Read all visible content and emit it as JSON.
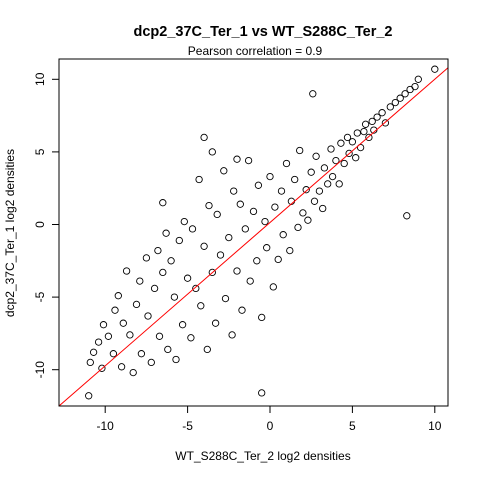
{
  "chart_data": {
    "type": "scatter",
    "title": "dcp2_37C_Ter_1 vs WT_S288C_Ter_2",
    "subtitle": "Pearson correlation =  0.9",
    "xlabel": "WT_S288C_Ter_2 log2 densities",
    "ylabel": "dcp2_37C_Ter_1 log2 densities",
    "xlim": [
      -12.8,
      10.8
    ],
    "ylim": [
      -12.5,
      11.4
    ],
    "xticks": [
      -10,
      -5,
      0,
      5,
      10
    ],
    "yticks": [
      -10,
      -5,
      0,
      5,
      10
    ],
    "xtick_labels": [
      "-10",
      "-5",
      "0",
      "5",
      "10"
    ],
    "ytick_labels": [
      "-10",
      "-5",
      "0",
      "5",
      "10"
    ],
    "grid": false,
    "marker": "open-circle",
    "point_color": "#000000",
    "reference_line": {
      "label": "",
      "slope": 1,
      "intercept": 0,
      "color": "#ff0000"
    },
    "series": [
      {
        "points": [
          [
            -11.0,
            -11.8
          ],
          [
            -10.9,
            -9.5
          ],
          [
            -10.7,
            -8.8
          ],
          [
            -10.4,
            -8.1
          ],
          [
            -10.2,
            -9.9
          ],
          [
            -10.1,
            -6.9
          ],
          [
            -9.8,
            -7.7
          ],
          [
            -9.5,
            -8.9
          ],
          [
            -9.4,
            -5.9
          ],
          [
            -9.2,
            -4.9
          ],
          [
            -9.0,
            -9.8
          ],
          [
            -8.9,
            -6.8
          ],
          [
            -8.7,
            -3.2
          ],
          [
            -8.5,
            -7.6
          ],
          [
            -8.3,
            -10.2
          ],
          [
            -8.1,
            -5.5
          ],
          [
            -7.9,
            -3.9
          ],
          [
            -7.8,
            -8.9
          ],
          [
            -7.5,
            -2.3
          ],
          [
            -7.4,
            -6.3
          ],
          [
            -7.2,
            -9.5
          ],
          [
            -7.0,
            -4.4
          ],
          [
            -6.8,
            -1.8
          ],
          [
            -6.7,
            -7.7
          ],
          [
            -6.5,
            -3.3
          ],
          [
            -6.3,
            -0.6
          ],
          [
            -6.2,
            -8.6
          ],
          [
            -6.0,
            -2.5
          ],
          [
            -5.8,
            -5.0
          ],
          [
            -5.7,
            -9.3
          ],
          [
            -5.5,
            -1.1
          ],
          [
            -5.3,
            -6.9
          ],
          [
            -5.2,
            0.2
          ],
          [
            -5.0,
            -3.7
          ],
          [
            -4.8,
            -7.8
          ],
          [
            -4.7,
            -0.3
          ],
          [
            -4.5,
            -4.4
          ],
          [
            -4.3,
            3.1
          ],
          [
            -4.2,
            -5.6
          ],
          [
            -4.0,
            -1.5
          ],
          [
            -3.8,
            -8.6
          ],
          [
            -3.7,
            1.3
          ],
          [
            -3.5,
            -3.3
          ],
          [
            -3.3,
            -6.8
          ],
          [
            -3.2,
            0.7
          ],
          [
            -3.0,
            -2.1
          ],
          [
            -2.8,
            3.7
          ],
          [
            -2.7,
            -5.1
          ],
          [
            -2.5,
            -0.9
          ],
          [
            -2.3,
            -7.6
          ],
          [
            -2.2,
            2.3
          ],
          [
            -2.0,
            -3.2
          ],
          [
            -1.8,
            1.4
          ],
          [
            -1.7,
            -5.9
          ],
          [
            -1.5,
            -0.3
          ],
          [
            -1.3,
            4.4
          ],
          [
            -1.2,
            -3.9
          ],
          [
            -1.0,
            0.9
          ],
          [
            -0.8,
            -2.5
          ],
          [
            -0.7,
            2.7
          ],
          [
            -0.5,
            -6.4
          ],
          [
            -0.3,
            0.2
          ],
          [
            -0.2,
            -1.6
          ],
          [
            0.0,
            3.3
          ],
          [
            0.2,
            -4.3
          ],
          [
            0.3,
            1.2
          ],
          [
            0.5,
            -2.4
          ],
          [
            0.7,
            2.3
          ],
          [
            0.8,
            -0.7
          ],
          [
            1.0,
            4.2
          ],
          [
            1.2,
            -1.8
          ],
          [
            1.3,
            1.6
          ],
          [
            1.5,
            3.1
          ],
          [
            1.7,
            -0.2
          ],
          [
            1.8,
            5.1
          ],
          [
            2.0,
            0.8
          ],
          [
            2.2,
            2.4
          ],
          [
            2.3,
            0.3
          ],
          [
            2.5,
            3.6
          ],
          [
            2.7,
            1.6
          ],
          [
            2.8,
            4.7
          ],
          [
            3.0,
            2.3
          ],
          [
            3.2,
            1.1
          ],
          [
            3.3,
            3.9
          ],
          [
            3.5,
            2.8
          ],
          [
            3.7,
            5.2
          ],
          [
            3.8,
            3.3
          ],
          [
            4.0,
            4.4
          ],
          [
            4.2,
            2.8
          ],
          [
            4.3,
            5.6
          ],
          [
            4.5,
            4.2
          ],
          [
            4.7,
            6.0
          ],
          [
            4.8,
            4.9
          ],
          [
            5.0,
            5.7
          ],
          [
            5.2,
            4.6
          ],
          [
            5.3,
            6.3
          ],
          [
            5.5,
            5.3
          ],
          [
            5.7,
            6.4
          ],
          [
            5.8,
            6.9
          ],
          [
            6.0,
            6.0
          ],
          [
            6.2,
            7.1
          ],
          [
            6.3,
            6.5
          ],
          [
            6.5,
            7.4
          ],
          [
            6.8,
            7.7
          ],
          [
            7.0,
            7.0
          ],
          [
            7.3,
            8.1
          ],
          [
            7.6,
            8.4
          ],
          [
            7.9,
            8.7
          ],
          [
            8.2,
            9.0
          ],
          [
            8.3,
            0.6
          ],
          [
            8.5,
            9.3
          ],
          [
            8.8,
            9.5
          ],
          [
            9.0,
            10.0
          ],
          [
            10.0,
            10.7
          ],
          [
            -0.5,
            -11.6
          ],
          [
            -3.5,
            5.0
          ],
          [
            -6.5,
            1.5
          ],
          [
            -4.0,
            6.0
          ],
          [
            -2.0,
            4.5
          ],
          [
            2.6,
            9.0
          ]
        ]
      }
    ]
  }
}
